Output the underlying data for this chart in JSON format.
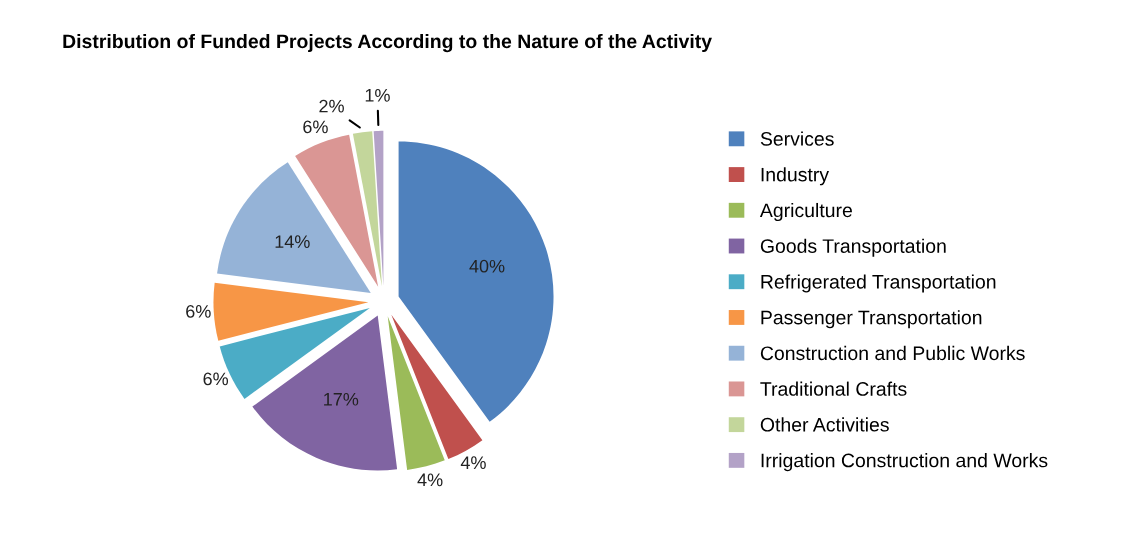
{
  "chart_data": {
    "type": "pie",
    "title": "Distribution of Funded Projects According to the Nature of the Activity",
    "categories": [
      "Services",
      "Industry",
      "Agriculture",
      "Goods Transportation",
      "Refrigerated Transportation",
      "Passenger Transportation",
      "Construction and Public Works",
      "Traditional Crafts",
      "Other Activities",
      "Irrigation Construction and Works"
    ],
    "values": [
      40,
      4,
      4,
      17,
      6,
      6,
      14,
      6,
      2,
      1
    ],
    "colors": [
      "#4f81bd",
      "#c0504d",
      "#9bbb59",
      "#8064a2",
      "#4bacc6",
      "#f79646",
      "#95b3d7",
      "#da9694",
      "#c3d69b",
      "#b3a2c7"
    ],
    "value_labels": [
      "40%",
      "4%",
      "4%",
      "17%",
      "6%",
      "6%",
      "14%",
      "6%",
      "2%",
      "1%"
    ],
    "legend": "right"
  }
}
